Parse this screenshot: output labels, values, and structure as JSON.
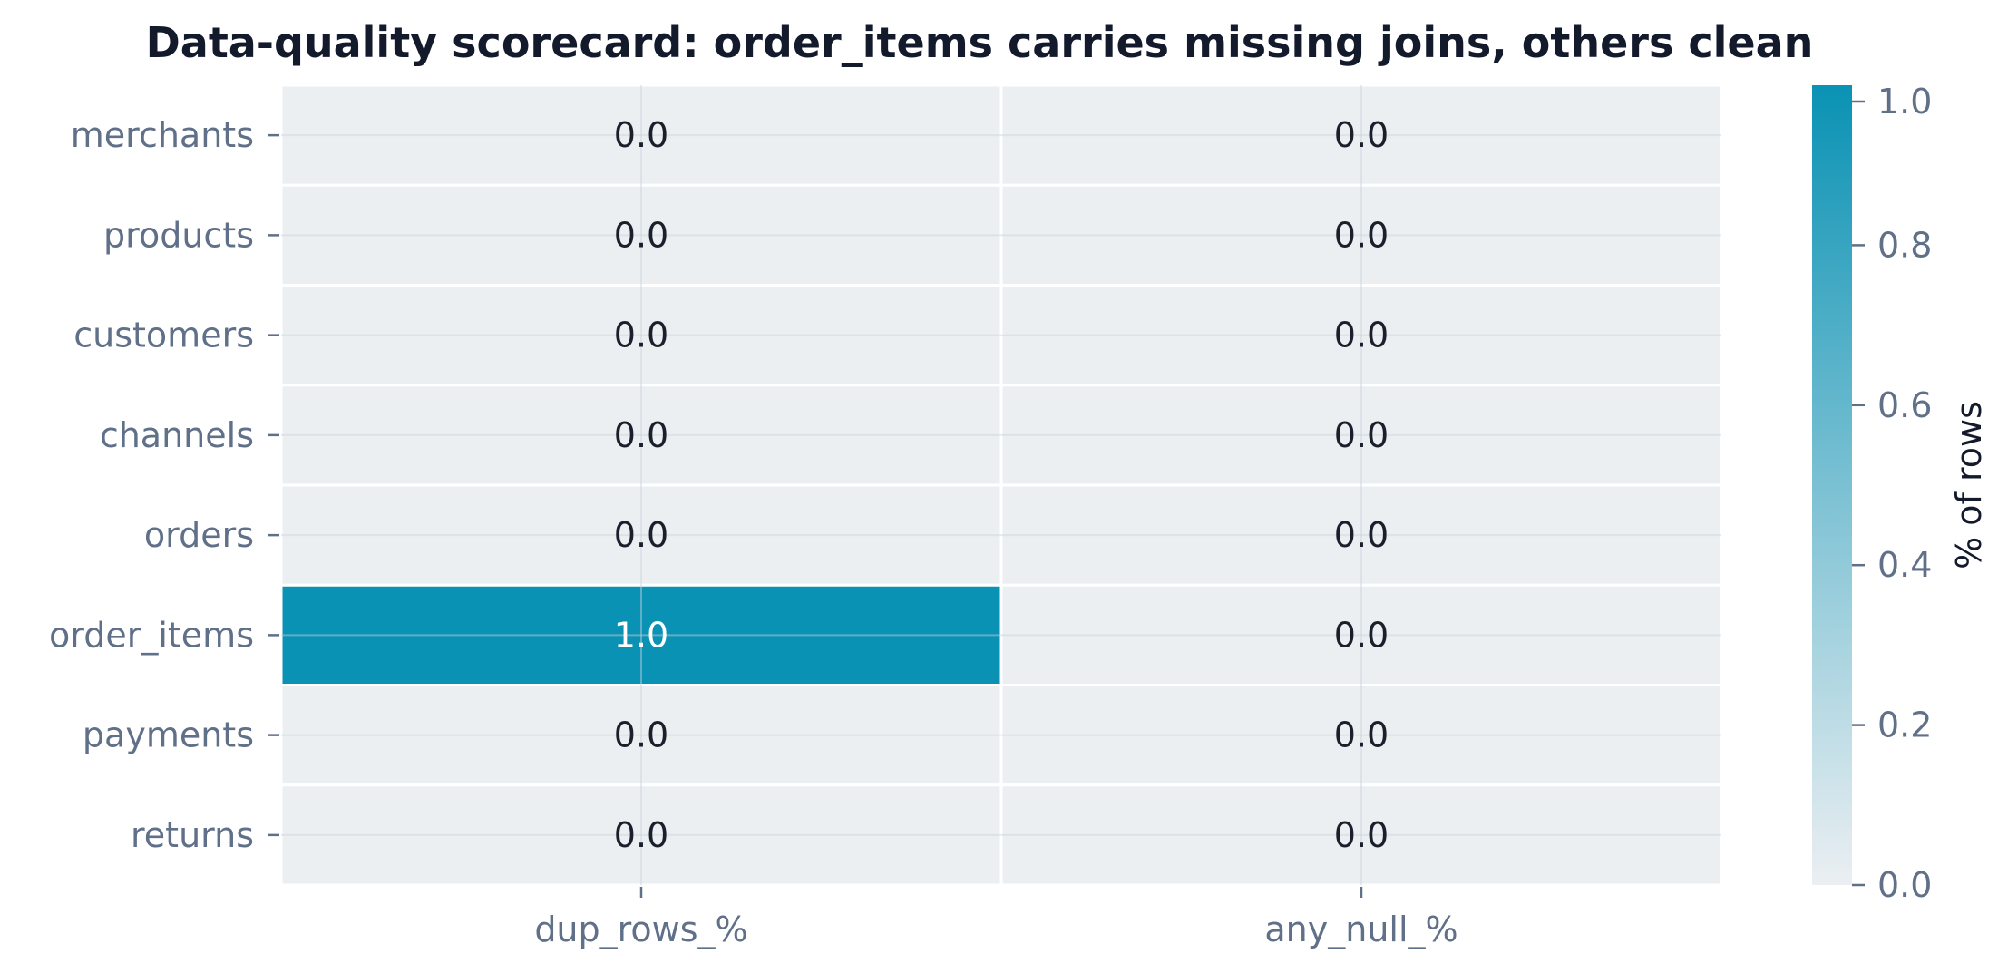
{
  "chart_data": {
    "type": "heatmap",
    "title": "Data-quality scorecard: order_items carries missing joins, others clean",
    "rows": [
      "merchants",
      "products",
      "customers",
      "channels",
      "orders",
      "order_items",
      "payments",
      "returns"
    ],
    "columns": [
      "dup_rows_%",
      "any_null_%"
    ],
    "values": [
      [
        0.0,
        0.0
      ],
      [
        0.0,
        0.0
      ],
      [
        0.0,
        0.0
      ],
      [
        0.0,
        0.0
      ],
      [
        0.0,
        0.0
      ],
      [
        1.0,
        0.0
      ],
      [
        0.0,
        0.0
      ],
      [
        0.0,
        0.0
      ]
    ],
    "cell_labels": [
      [
        "0.0",
        "0.0"
      ],
      [
        "0.0",
        "0.0"
      ],
      [
        "0.0",
        "0.0"
      ],
      [
        "0.0",
        "0.0"
      ],
      [
        "0.0",
        "0.0"
      ],
      [
        "1.0",
        "0.0"
      ],
      [
        "0.0",
        "0.0"
      ],
      [
        "0.0",
        "0.0"
      ]
    ],
    "colorbar": {
      "label": "% of rows",
      "range": [
        0.0,
        1.0
      ],
      "ticks": [
        0.0,
        0.2,
        0.4,
        0.6,
        0.8,
        1.0
      ],
      "tick_labels": [
        "0.0",
        "0.2",
        "0.4",
        "0.6",
        "0.8",
        "1.0"
      ],
      "color_low": "#ebeff2",
      "color_high": "#0a92b4"
    },
    "grid": true,
    "label_color_dark": "#1a1f2b",
    "label_color_light": "#ffffff"
  }
}
